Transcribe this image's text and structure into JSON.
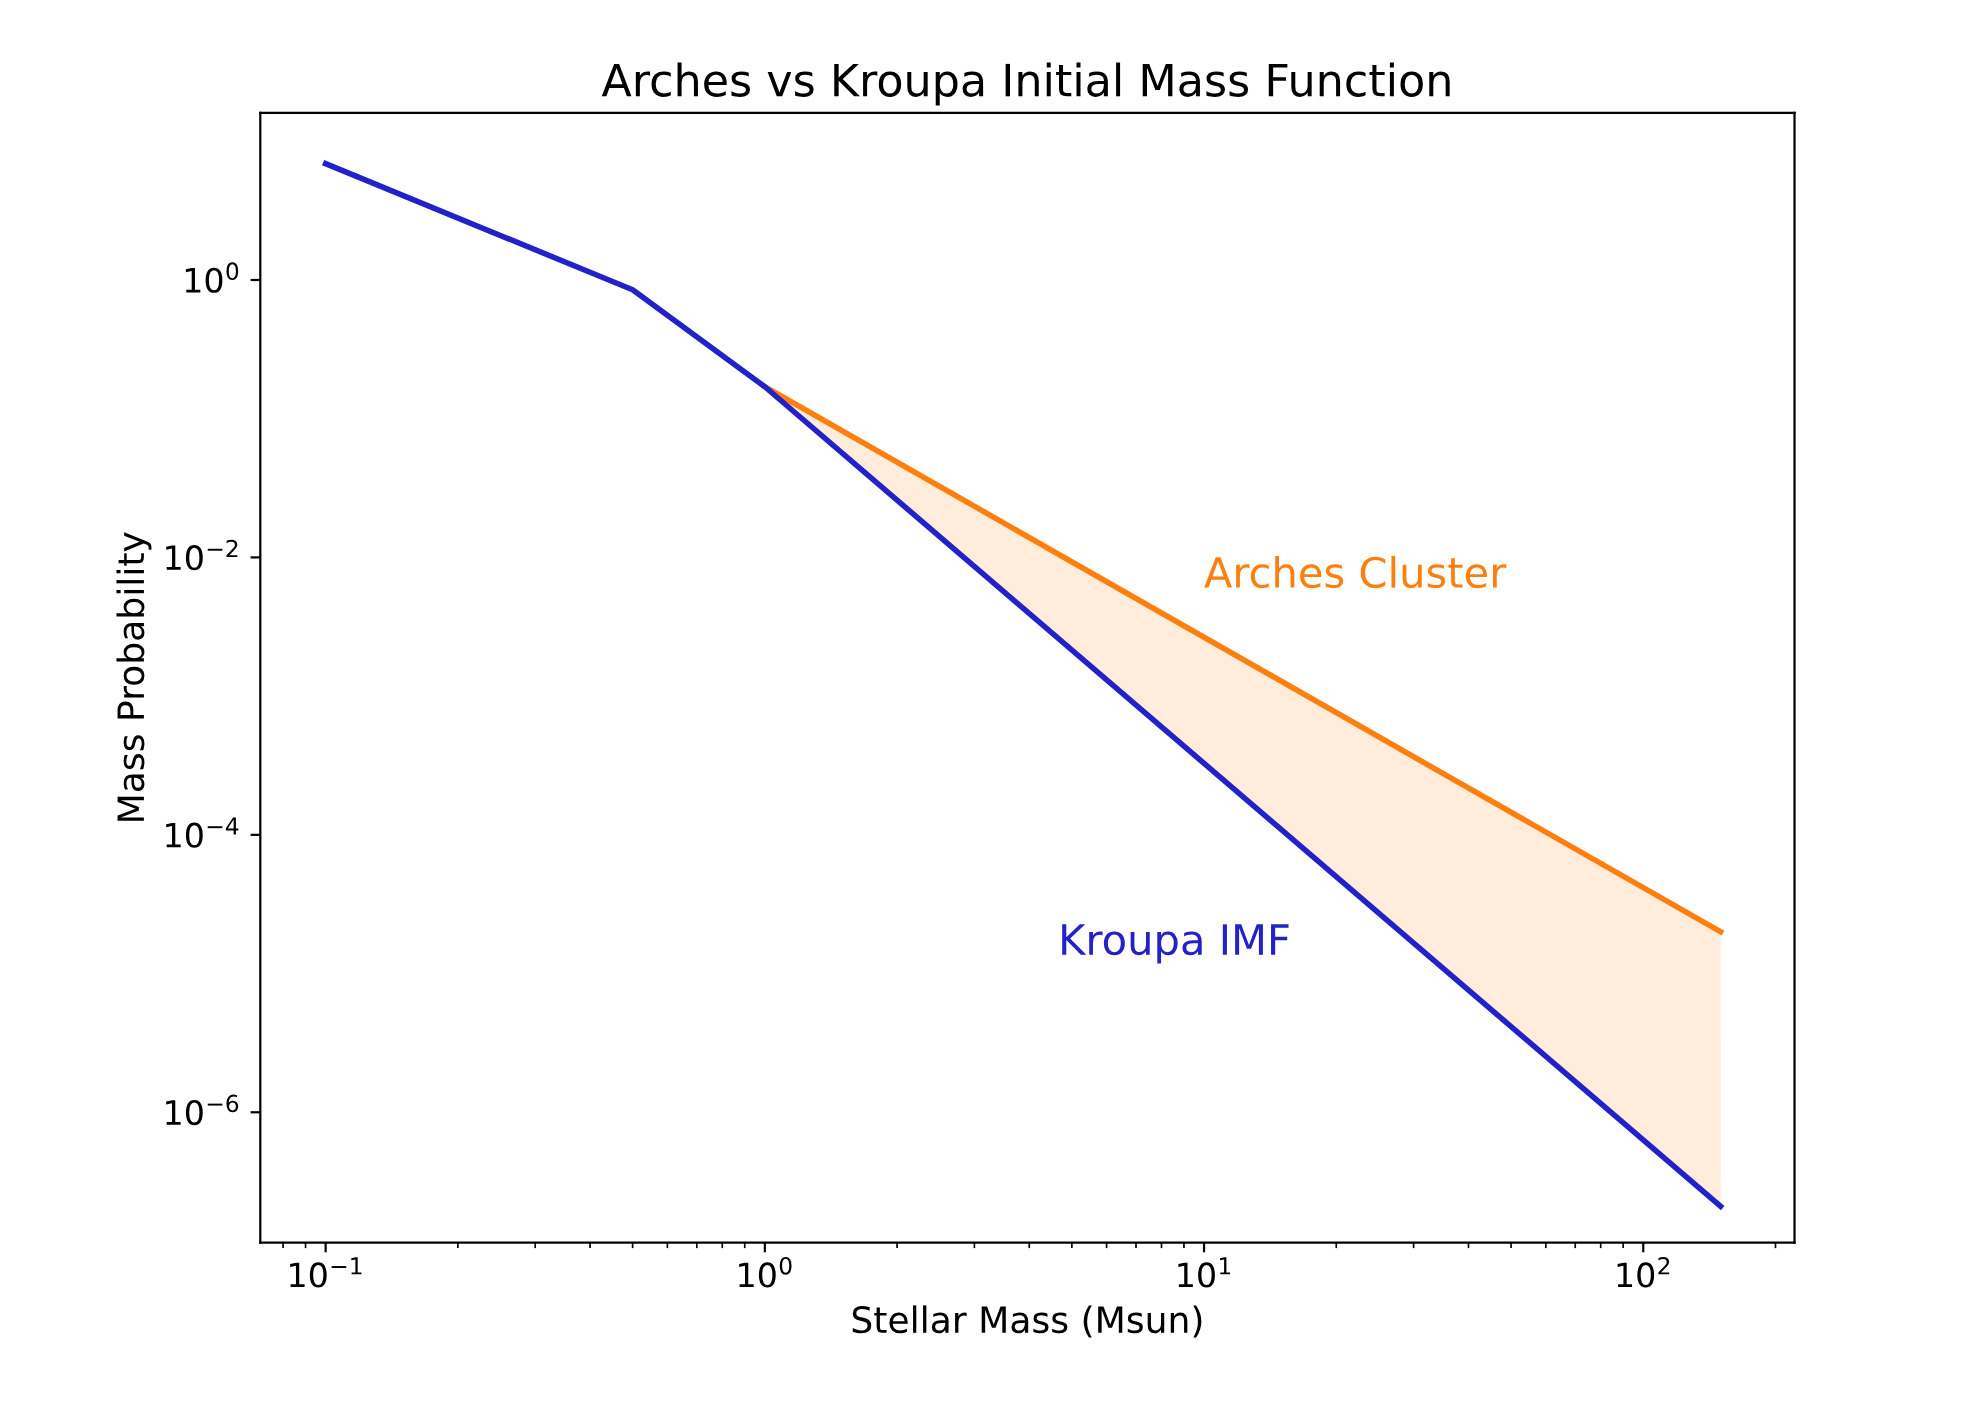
{
  "chart_data": {
    "type": "line",
    "title": "Arches vs Kroupa Initial Mass Function",
    "xlabel": "Stellar Mass (Msun)",
    "ylabel": "Mass Probability",
    "log": "xy",
    "xlim": [
      0.071,
      221
    ],
    "ylim": [
      1.15e-07,
      16
    ],
    "xticks": [
      {
        "value": 0.1,
        "label": "10$^{−1}$"
      },
      {
        "value": 1,
        "label": "10$^{0}$"
      },
      {
        "value": 10,
        "label": "10$^{1}$"
      },
      {
        "value": 100,
        "label": "10$^{2}$"
      }
    ],
    "yticks": [
      {
        "value": 1e-06,
        "label": "10$^{−6}$"
      },
      {
        "value": 0.0001,
        "label": "10$^{−4}$"
      },
      {
        "value": 0.01,
        "label": "10$^{−2}$"
      },
      {
        "value": 1,
        "label": "10$^{0}$"
      }
    ],
    "grid": false,
    "legend": false,
    "marker": "none",
    "line_style": "solid",
    "series": [
      {
        "name": "Arches Cluster",
        "color": "#ff7f0e",
        "x": [
          1,
          150
        ],
        "values": [
          0.17,
          2e-05
        ],
        "lower": [
          0.17,
          2.1e-07
        ],
        "upper": [
          0.17,
          2e-05
        ]
      },
      {
        "name": "Kroupa IMF",
        "color": "#2222c8",
        "x": [
          0.1,
          0.5,
          1,
          150
        ],
        "values": [
          6.9,
          0.85,
          0.17,
          2.1e-07
        ]
      }
    ]
  }
}
